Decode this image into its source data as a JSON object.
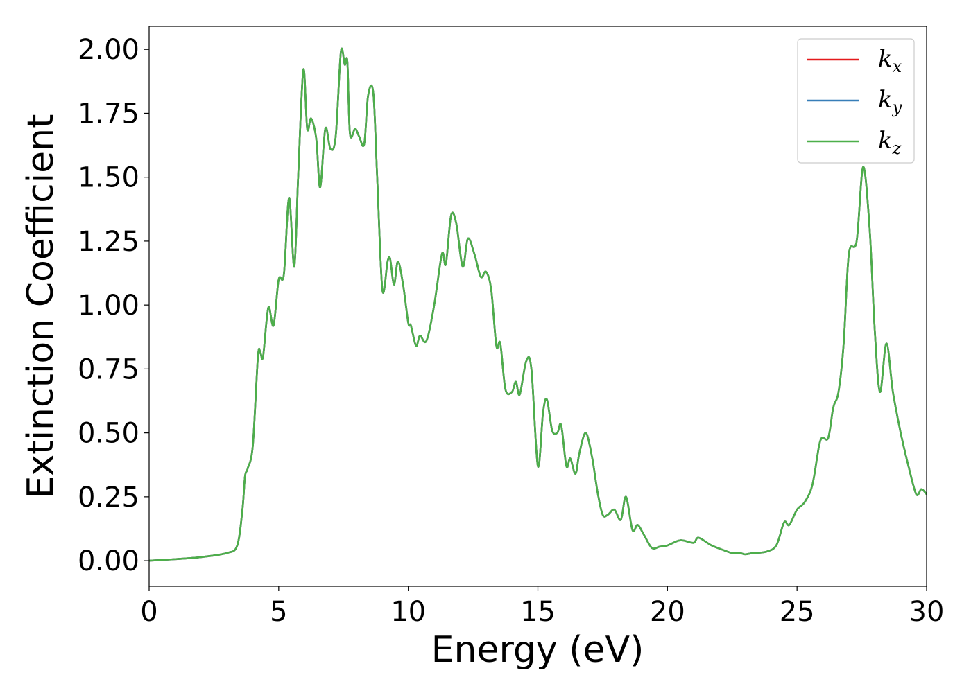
{
  "chart_data": {
    "type": "line",
    "xlabel": "Energy (eV)",
    "ylabel": "Extinction Coefficient",
    "xlim": [
      0,
      30
    ],
    "ylim": [
      -0.1,
      2.09
    ],
    "xticks": [
      "0",
      "5",
      "10",
      "15",
      "20",
      "25",
      "30"
    ],
    "yticks": [
      "0.00",
      "0.25",
      "0.50",
      "0.75",
      "1.00",
      "1.25",
      "1.50",
      "1.75",
      "2.00"
    ],
    "grid": false,
    "legend_position": "top-right",
    "series": [
      {
        "name": "k",
        "subscript": "x",
        "color": "#e41a1c"
      },
      {
        "name": "k",
        "subscript": "y",
        "color": "#377eb8"
      },
      {
        "name": "k",
        "subscript": "z",
        "color": "#4daf4a"
      }
    ],
    "x": [
      0,
      1,
      2,
      3,
      3.4,
      3.6,
      3.7,
      3.8,
      4.0,
      4.2,
      4.3,
      4.4,
      4.6,
      4.8,
      5.0,
      5.2,
      5.4,
      5.6,
      5.75,
      5.95,
      6.1,
      6.25,
      6.45,
      6.6,
      6.8,
      7.0,
      7.2,
      7.4,
      7.55,
      7.65,
      7.75,
      7.95,
      8.1,
      8.3,
      8.45,
      8.65,
      8.8,
      9.0,
      9.2,
      9.3,
      9.45,
      9.6,
      9.8,
      10.0,
      10.1,
      10.3,
      10.45,
      10.7,
      11.0,
      11.3,
      11.45,
      11.65,
      11.85,
      12.1,
      12.3,
      12.55,
      12.8,
      13.0,
      13.2,
      13.4,
      13.55,
      13.75,
      14.0,
      14.15,
      14.3,
      14.55,
      14.75,
      15.0,
      15.2,
      15.35,
      15.55,
      15.75,
      15.9,
      16.1,
      16.25,
      16.45,
      16.6,
      16.85,
      17.1,
      17.3,
      17.5,
      17.7,
      17.95,
      18.2,
      18.4,
      18.65,
      18.85,
      19.1,
      19.4,
      19.7,
      20.0,
      20.5,
      21.0,
      21.2,
      21.7,
      22.2,
      22.5,
      22.8,
      23.0,
      23.3,
      23.8,
      24.2,
      24.5,
      24.7,
      25.0,
      25.3,
      25.6,
      25.9,
      26.2,
      26.4,
      26.6,
      26.8,
      27.0,
      27.3,
      27.55,
      27.8,
      28.0,
      28.2,
      28.45,
      28.7,
      29.0,
      29.3,
      29.6,
      29.8,
      30.0
    ],
    "y": [
      0.0,
      0.006,
      0.014,
      0.03,
      0.06,
      0.2,
      0.33,
      0.36,
      0.45,
      0.8,
      0.81,
      0.8,
      0.99,
      0.92,
      1.1,
      1.12,
      1.42,
      1.15,
      1.5,
      1.92,
      1.69,
      1.73,
      1.65,
      1.46,
      1.69,
      1.61,
      1.66,
      1.99,
      1.94,
      1.95,
      1.67,
      1.69,
      1.66,
      1.63,
      1.82,
      1.83,
      1.5,
      1.06,
      1.17,
      1.18,
      1.08,
      1.17,
      1.08,
      0.93,
      0.92,
      0.84,
      0.88,
      0.86,
      1.0,
      1.2,
      1.16,
      1.35,
      1.32,
      1.15,
      1.26,
      1.2,
      1.11,
      1.13,
      1.06,
      0.84,
      0.85,
      0.67,
      0.66,
      0.7,
      0.65,
      0.78,
      0.75,
      0.37,
      0.58,
      0.63,
      0.51,
      0.5,
      0.53,
      0.37,
      0.4,
      0.34,
      0.42,
      0.5,
      0.4,
      0.27,
      0.18,
      0.18,
      0.2,
      0.16,
      0.25,
      0.12,
      0.14,
      0.1,
      0.05,
      0.055,
      0.06,
      0.08,
      0.07,
      0.09,
      0.06,
      0.04,
      0.03,
      0.03,
      0.025,
      0.03,
      0.035,
      0.06,
      0.15,
      0.14,
      0.2,
      0.23,
      0.3,
      0.47,
      0.48,
      0.6,
      0.66,
      0.85,
      1.2,
      1.25,
      1.54,
      1.3,
      0.9,
      0.66,
      0.85,
      0.66,
      0.5,
      0.37,
      0.26,
      0.28,
      0.26
    ]
  }
}
